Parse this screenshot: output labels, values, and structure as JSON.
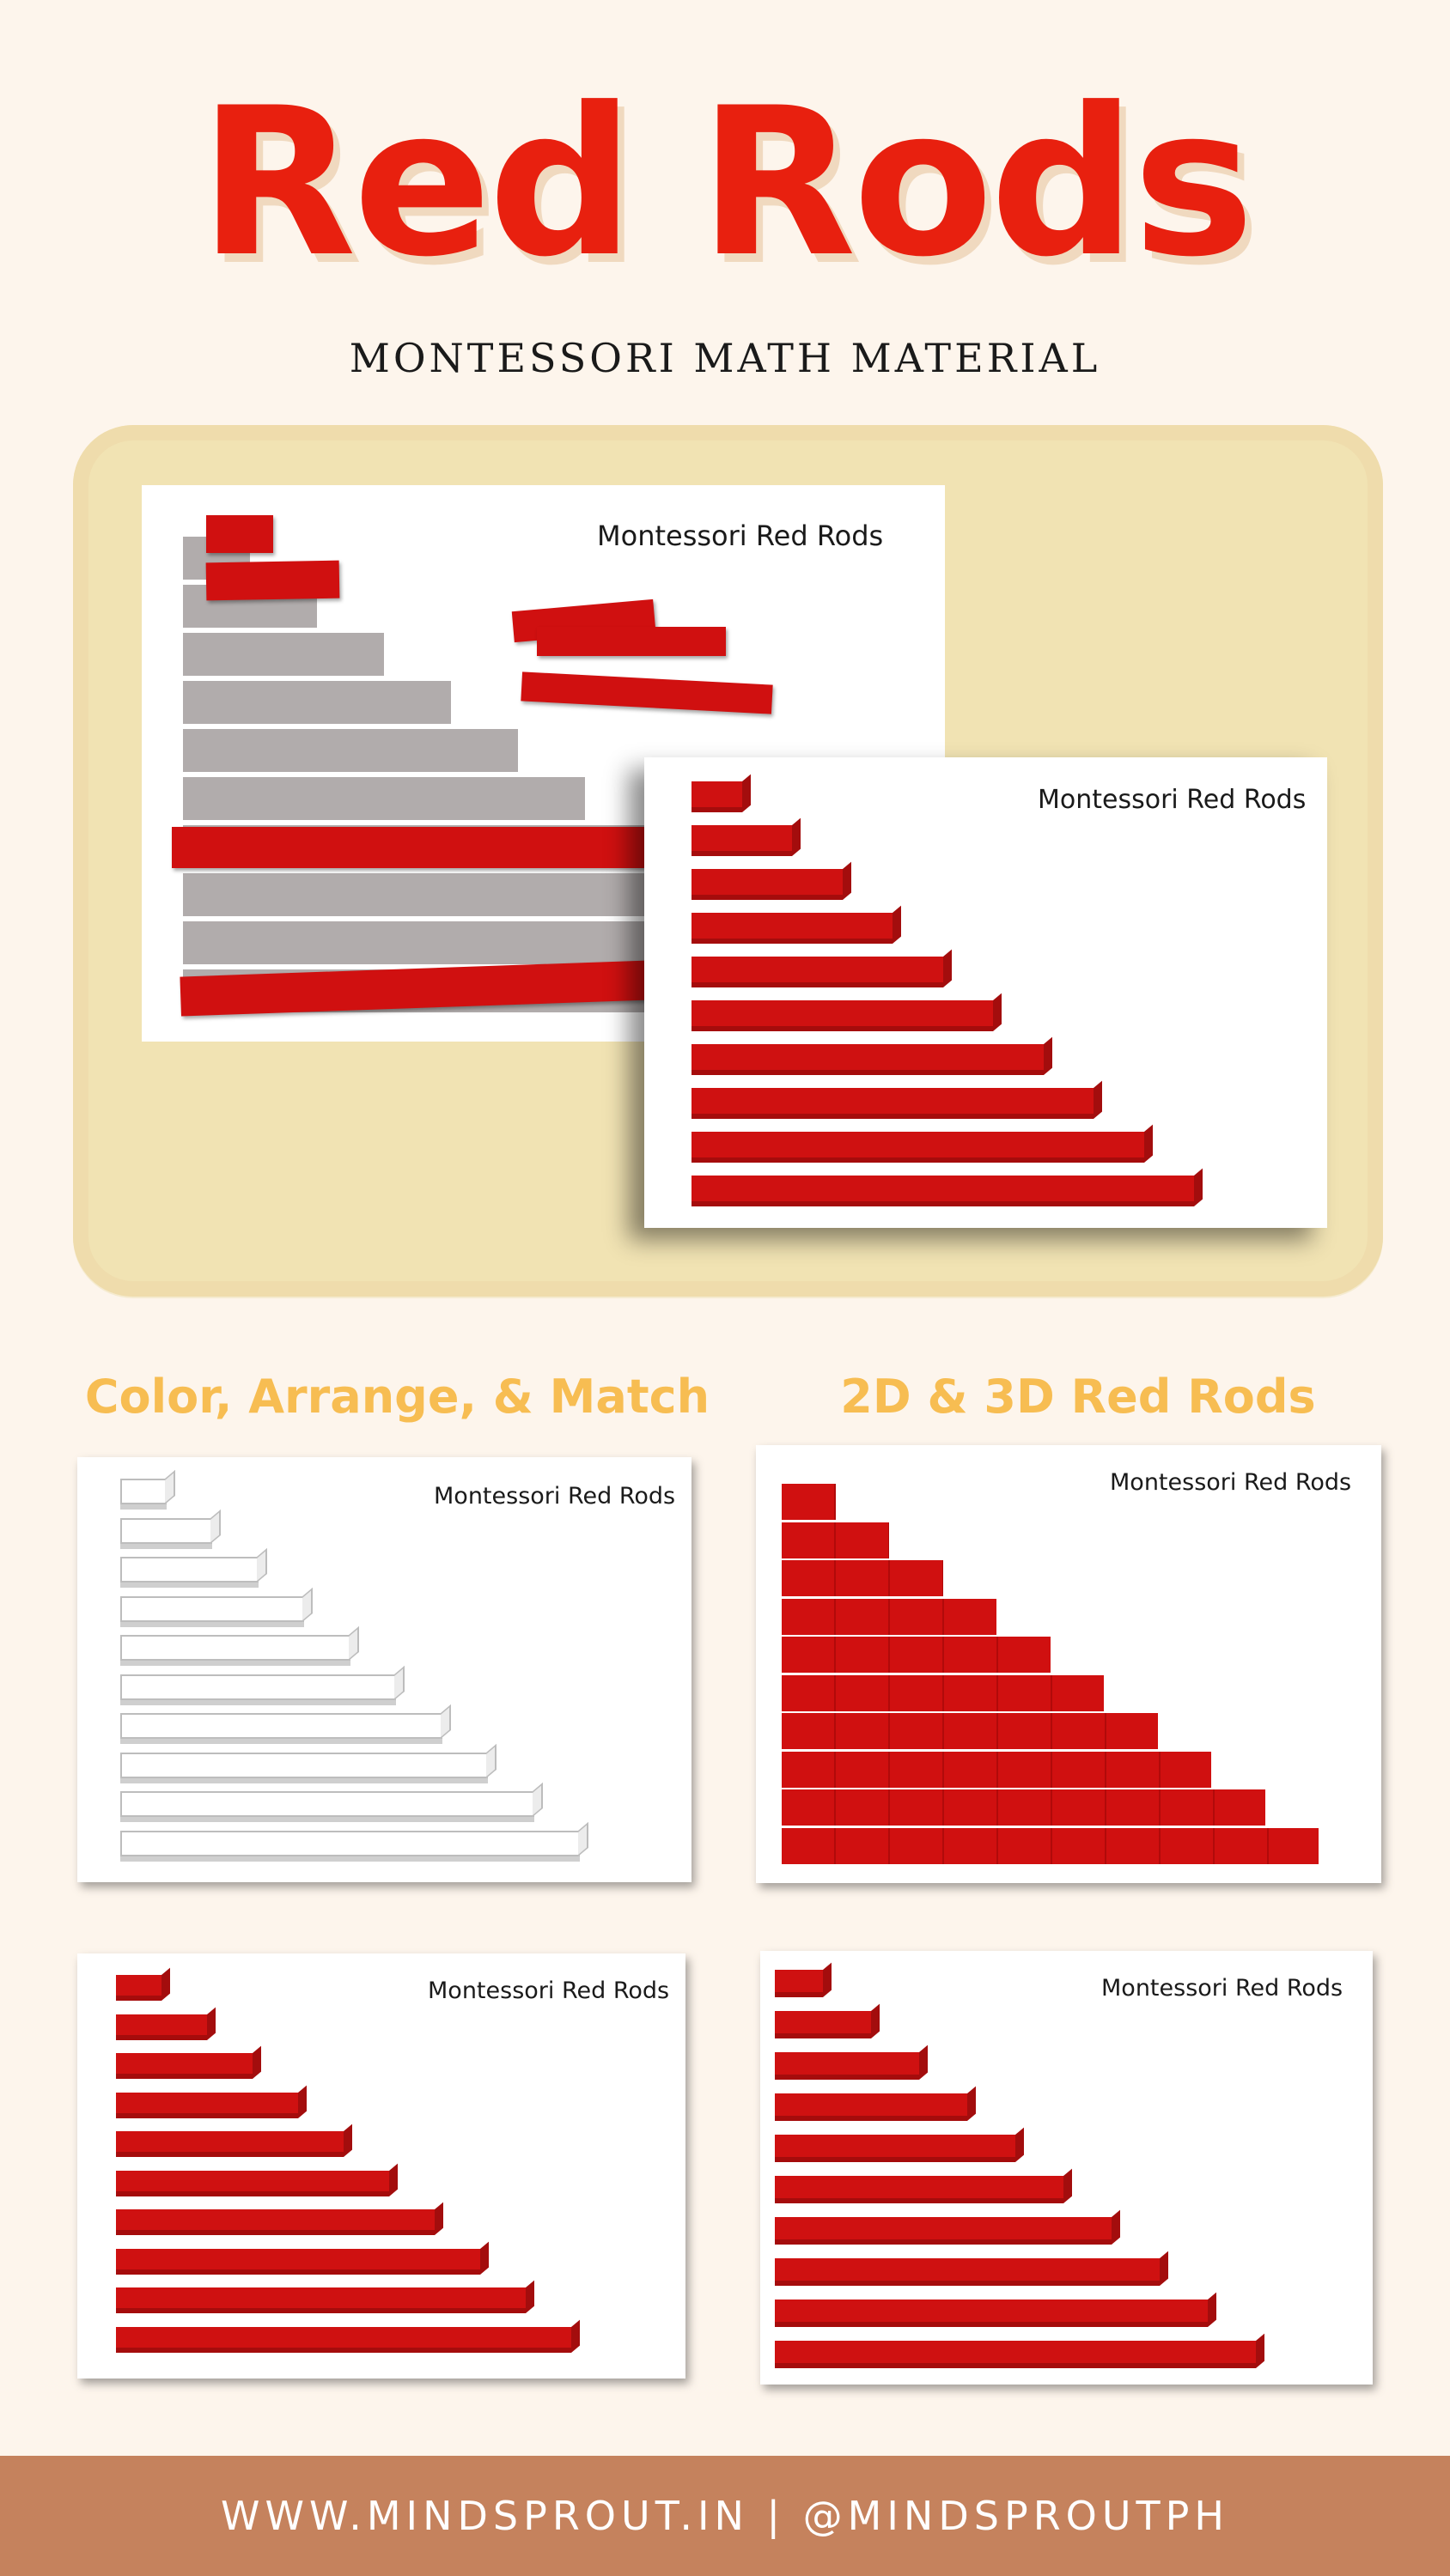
{
  "header": {
    "title": "Red Rods",
    "subtitle": "MONTESSORI MATH MATERIAL"
  },
  "hero": {
    "back_card_label": "Montessori Red Rods",
    "front_card_label": "Montessori Red Rods"
  },
  "sections": {
    "left_heading": "Color, Arrange, & Match",
    "right_heading": "2D & 3D Red Rods"
  },
  "cards": {
    "outline_label": "Montessori Red Rods",
    "flat_label": "Montessori Red Rods",
    "red_3d_label_a": "Montessori Red Rods",
    "red_3d_label_b": "Montessori Red Rods"
  },
  "footer": {
    "text": "WWW.MINDSPROUT.IN  |  @MINDSPROUTPH"
  },
  "colors": {
    "title_red": "#e8200f",
    "rod_red": "#cf1111",
    "heading_yellow": "#f7bd52",
    "footer_bg": "#c5825d",
    "page_bg": "#fdf5ec",
    "mat": "#f1e3b3"
  },
  "rods": {
    "count_per_set": 10
  }
}
